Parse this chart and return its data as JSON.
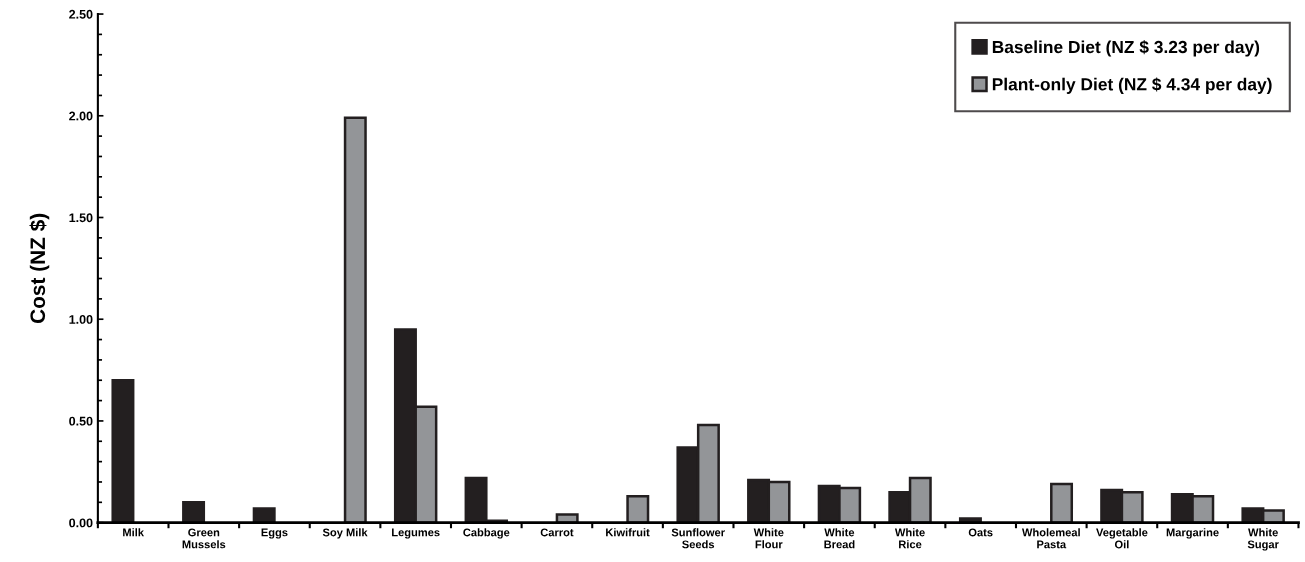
{
  "chart_data": {
    "type": "bar",
    "ylabel": "Cost (NZ $)",
    "categories": [
      "Milk",
      "Green\nMussels",
      "Eggs",
      "Soy Milk",
      "Legumes",
      "Cabbage",
      "Carrot",
      "Kiwifruit",
      "Sunflower\nSeeds",
      "White\nFlour",
      "White\nBread",
      "White\nRice",
      "Oats",
      "Wholemeal\nPasta",
      "Vegetable\nOil",
      "Margarine",
      "White\nSugar"
    ],
    "series": [
      {
        "name": "Baseline Diet (NZ $ 3.23 per day)",
        "color": "#231f20",
        "values": [
          0.7,
          0.1,
          0.07,
          null,
          0.95,
          0.22,
          null,
          null,
          0.37,
          0.21,
          0.18,
          0.15,
          0.02,
          null,
          0.16,
          0.14,
          0.07
        ]
      },
      {
        "name": "Plant-only Diet (NZ $ 4.34 per day)",
        "color": "#939598",
        "values": [
          null,
          null,
          null,
          1.99,
          0.57,
          0.01,
          0.04,
          0.13,
          0.48,
          0.2,
          0.17,
          0.22,
          null,
          0.19,
          0.15,
          0.13,
          0.06
        ]
      }
    ],
    "ylim": [
      0,
      2.5
    ],
    "yticks": [
      {
        "value": 0,
        "label": "0.00"
      },
      {
        "value": 0.5,
        "label": "0.50"
      },
      {
        "value": 1.0,
        "label": "1.00"
      },
      {
        "value": 1.5,
        "label": "1.50"
      },
      {
        "value": 2.0,
        "label": "2.00"
      },
      {
        "value": 2.5,
        "label": "2.50"
      }
    ],
    "grid": false,
    "legend": "top right"
  }
}
